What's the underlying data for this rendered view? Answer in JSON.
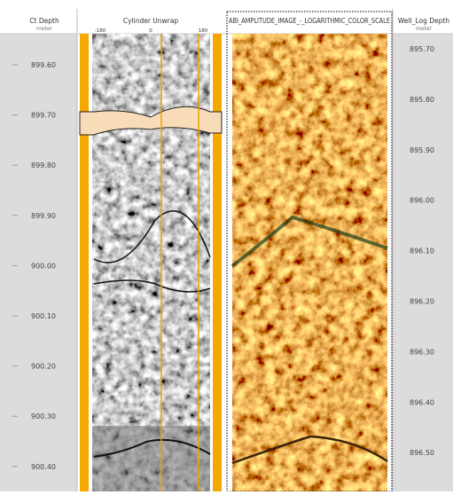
{
  "tracks": [
    {
      "title": "Ct Depth",
      "unit": "meter",
      "labels": [
        "899.60",
        "899.70",
        "899.80",
        "899.90",
        "900.00",
        "900.10",
        "900.20",
        "900.30",
        "900.40"
      ]
    },
    {
      "title": "Cylinder Unwrap",
      "axis_labels": [
        "-180",
        "0",
        "180"
      ]
    },
    {
      "title": "ABI_AMPLITUDE_IMAGE_-_LOGARITHMIC_COLOR_SCALE"
    },
    {
      "title": "Well_Log Depth",
      "unit": "meter",
      "labels": [
        "895.70",
        "895.80",
        "895.90",
        "896.00",
        "896.10",
        "896.20",
        "896.30",
        "896.40",
        "896.50"
      ]
    }
  ]
}
